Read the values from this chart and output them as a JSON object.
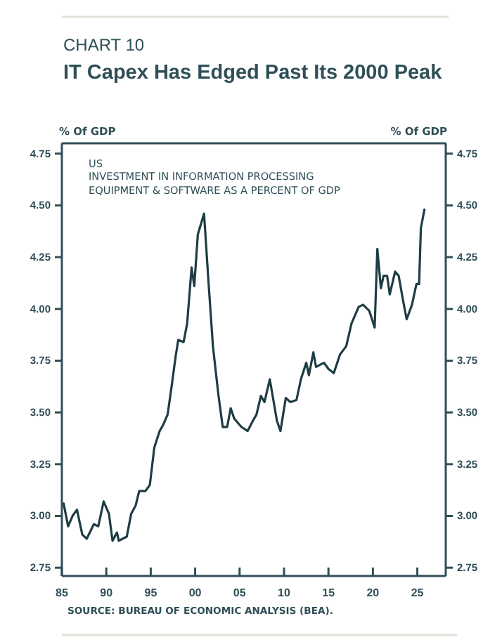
{
  "chart_data": {
    "type": "line",
    "subtitle": "CHART 10",
    "title": "IT Capex Has Edged Past Its 2000 Peak",
    "ylabel": "% Of GDP",
    "y2label": "% Of GDP",
    "annotations": [
      "US",
      "INVESTMENT IN INFORMATION PROCESSING EQUIPMENT & SOFTWARE AS A PERCENT OF GDP",
      "SOURCE: BUREAU OF ECONOMIC ANALYSIS (BEA)."
    ],
    "xlim": [
      1985,
      2028.2
    ],
    "xticks": [
      {
        "value": 1985,
        "label": "85"
      },
      {
        "value": 1990,
        "label": "90"
      },
      {
        "value": 1995,
        "label": "95"
      },
      {
        "value": 2000,
        "label": "00"
      },
      {
        "value": 2005,
        "label": "05"
      },
      {
        "value": 2010,
        "label": "10"
      },
      {
        "value": 2015,
        "label": "15"
      },
      {
        "value": 2020,
        "label": "20"
      },
      {
        "value": 2025,
        "label": "25"
      }
    ],
    "ylim": [
      2.71,
      4.8
    ],
    "yticks": [
      {
        "value": 2.75,
        "label": "2.75"
      },
      {
        "value": 3,
        "label": "3.00"
      },
      {
        "value": 3.25,
        "label": "3.25"
      },
      {
        "value": 3.5,
        "label": "3.50"
      },
      {
        "value": 3.75,
        "label": "3.75"
      },
      {
        "value": 4,
        "label": "4.00"
      },
      {
        "value": 4.25,
        "label": "4.25"
      },
      {
        "value": 4.5,
        "label": "4.50"
      },
      {
        "value": 4.75,
        "label": "4.75"
      }
    ],
    "y2lim": [
      2.71,
      4.8
    ],
    "y2ticks": [
      {
        "value": 2.75,
        "label": "2.75"
      },
      {
        "value": 3,
        "label": "3.00"
      },
      {
        "value": 3.25,
        "label": "3.25"
      },
      {
        "value": 3.5,
        "label": "3.50"
      },
      {
        "value": 3.75,
        "label": "3.75"
      },
      {
        "value": 4,
        "label": "4.00"
      },
      {
        "value": 4.25,
        "label": "4.25"
      },
      {
        "value": 4.5,
        "label": "4.50"
      },
      {
        "value": 4.75,
        "label": "4.75"
      }
    ],
    "grid": false,
    "line_style": "solid",
    "series": [
      {
        "color": "#1e3d45",
        "x": [
          1985.2,
          1985.7,
          1986.2,
          1986.7,
          1987.3,
          1987.8,
          1988.6,
          1989.1,
          1989.7,
          1990.3,
          1990.7,
          1991.2,
          1991.4,
          1992.3,
          1992.8,
          1993.3,
          1993.7,
          1994.4,
          1994.9,
          1995.4,
          1996.0,
          1996.4,
          1996.9,
          1997.3,
          1997.8,
          1998.1,
          1998.7,
          1999.1,
          1999.6,
          1999.9,
          2000.3,
          2001.0,
          2001.5,
          2002.0,
          2002.6,
          2003.1,
          2003.6,
          2004.0,
          2004.4,
          2005.2,
          2005.9,
          2006.5,
          2006.9,
          2007.4,
          2007.8,
          2008.4,
          2008.6,
          2009.2,
          2009.6,
          2010.2,
          2010.7,
          2011.4,
          2011.9,
          2012.5,
          2012.8,
          2013.3,
          2013.6,
          2014.5,
          2015.0,
          2015.6,
          2016.3,
          2017.0,
          2017.6,
          2018.4,
          2018.9,
          2019.6,
          2020.2,
          2020.5,
          2020.9,
          2021.2,
          2021.6,
          2021.9,
          2022.5,
          2022.9,
          2023.4,
          2023.8,
          2024.4,
          2024.9,
          2025.2,
          2025.4,
          2025.8
        ],
        "values": [
          3.06,
          2.95,
          3.0,
          3.03,
          2.91,
          2.89,
          2.96,
          2.95,
          3.07,
          3.01,
          2.88,
          2.92,
          2.88,
          2.9,
          3.01,
          3.05,
          3.12,
          3.12,
          3.15,
          3.33,
          3.41,
          3.44,
          3.49,
          3.61,
          3.77,
          3.85,
          3.84,
          3.93,
          4.2,
          4.11,
          4.36,
          4.46,
          4.13,
          3.82,
          3.59,
          3.43,
          3.43,
          3.52,
          3.47,
          3.43,
          3.41,
          3.46,
          3.49,
          3.58,
          3.55,
          3.66,
          3.61,
          3.46,
          3.41,
          3.57,
          3.55,
          3.56,
          3.66,
          3.74,
          3.68,
          3.79,
          3.72,
          3.74,
          3.71,
          3.69,
          3.78,
          3.82,
          3.93,
          4.01,
          4.02,
          3.99,
          3.91,
          4.29,
          4.1,
          4.16,
          4.16,
          4.07,
          4.18,
          4.16,
          4.04,
          3.95,
          4.02,
          4.12,
          4.12,
          4.39,
          4.48
        ]
      }
    ]
  }
}
